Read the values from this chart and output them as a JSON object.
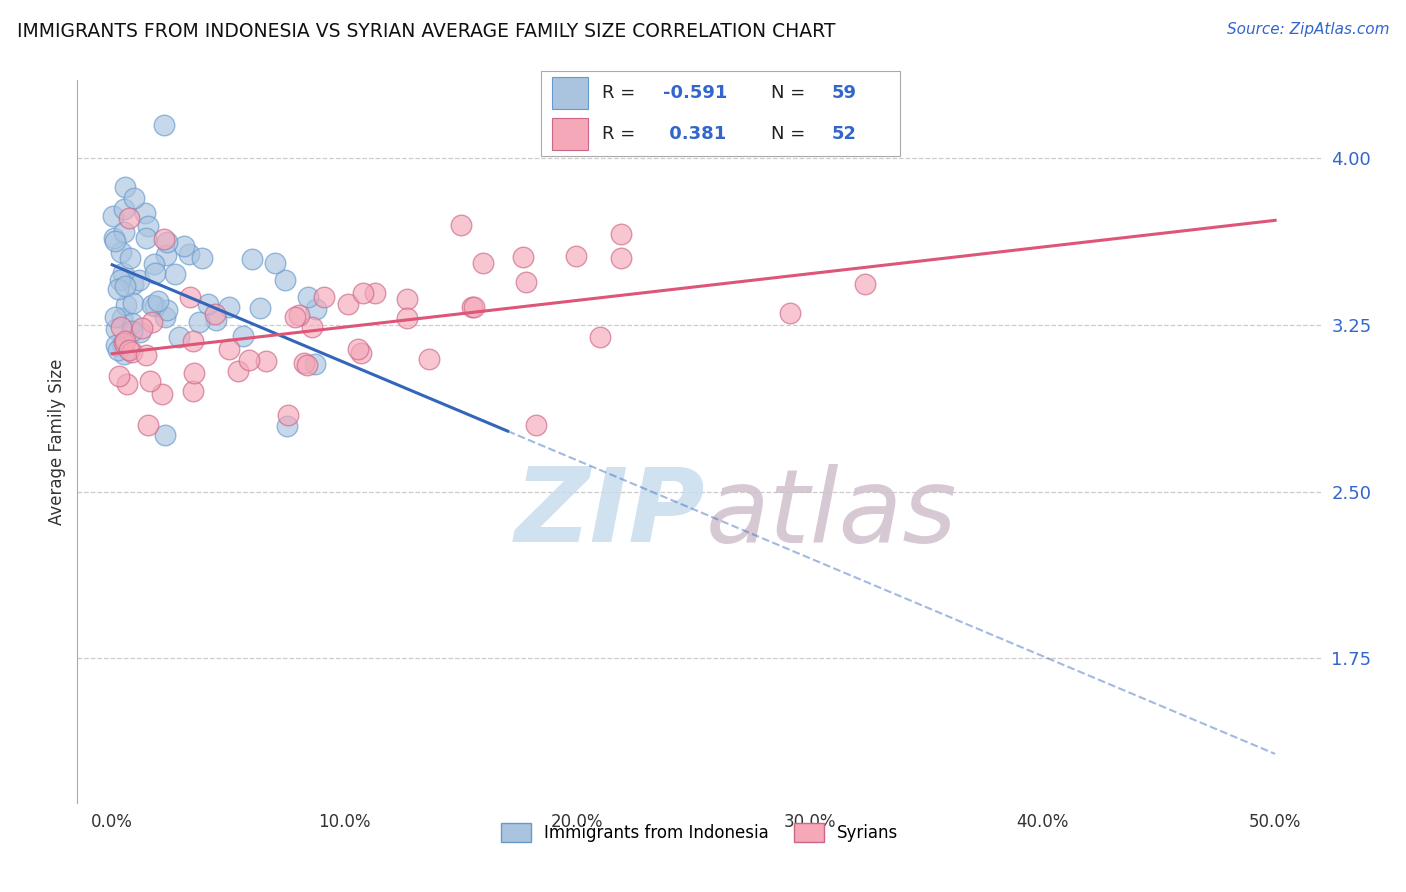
{
  "title": "IMMIGRANTS FROM INDONESIA VS SYRIAN AVERAGE FAMILY SIZE CORRELATION CHART",
  "source": "Source: ZipAtlas.com",
  "ylabel": "Average Family Size",
  "x_tick_labels": [
    "0.0%",
    "10.0%",
    "20.0%",
    "30.0%",
    "40.0%",
    "50.0%"
  ],
  "x_ticks": [
    0,
    10,
    20,
    30,
    40,
    50
  ],
  "y_ticks": [
    1.75,
    2.5,
    3.25,
    4.0
  ],
  "xlim": [
    -1.5,
    52
  ],
  "ylim": [
    1.1,
    4.35
  ],
  "background": "#ffffff",
  "grid_color": "#cccccc",
  "indonesia_color": "#aac4e0",
  "indonesia_edge": "#6699cc",
  "syrian_color": "#f4a8b8",
  "syrian_edge": "#cc6688",
  "indonesia_R": "-0.591",
  "indonesia_N": "59",
  "syrian_R": "0.381",
  "syrian_N": "52",
  "indonesia_line_color": "#3366bb",
  "syrian_line_color": "#dd5577",
  "slope_indo": -0.044,
  "intercept_indo": 3.52,
  "slope_syr": 0.012,
  "intercept_syr": 3.12,
  "indo_solid_end": 17,
  "watermark_zip_color": "#c8dcee",
  "watermark_atlas_color": "#d0c0cc"
}
